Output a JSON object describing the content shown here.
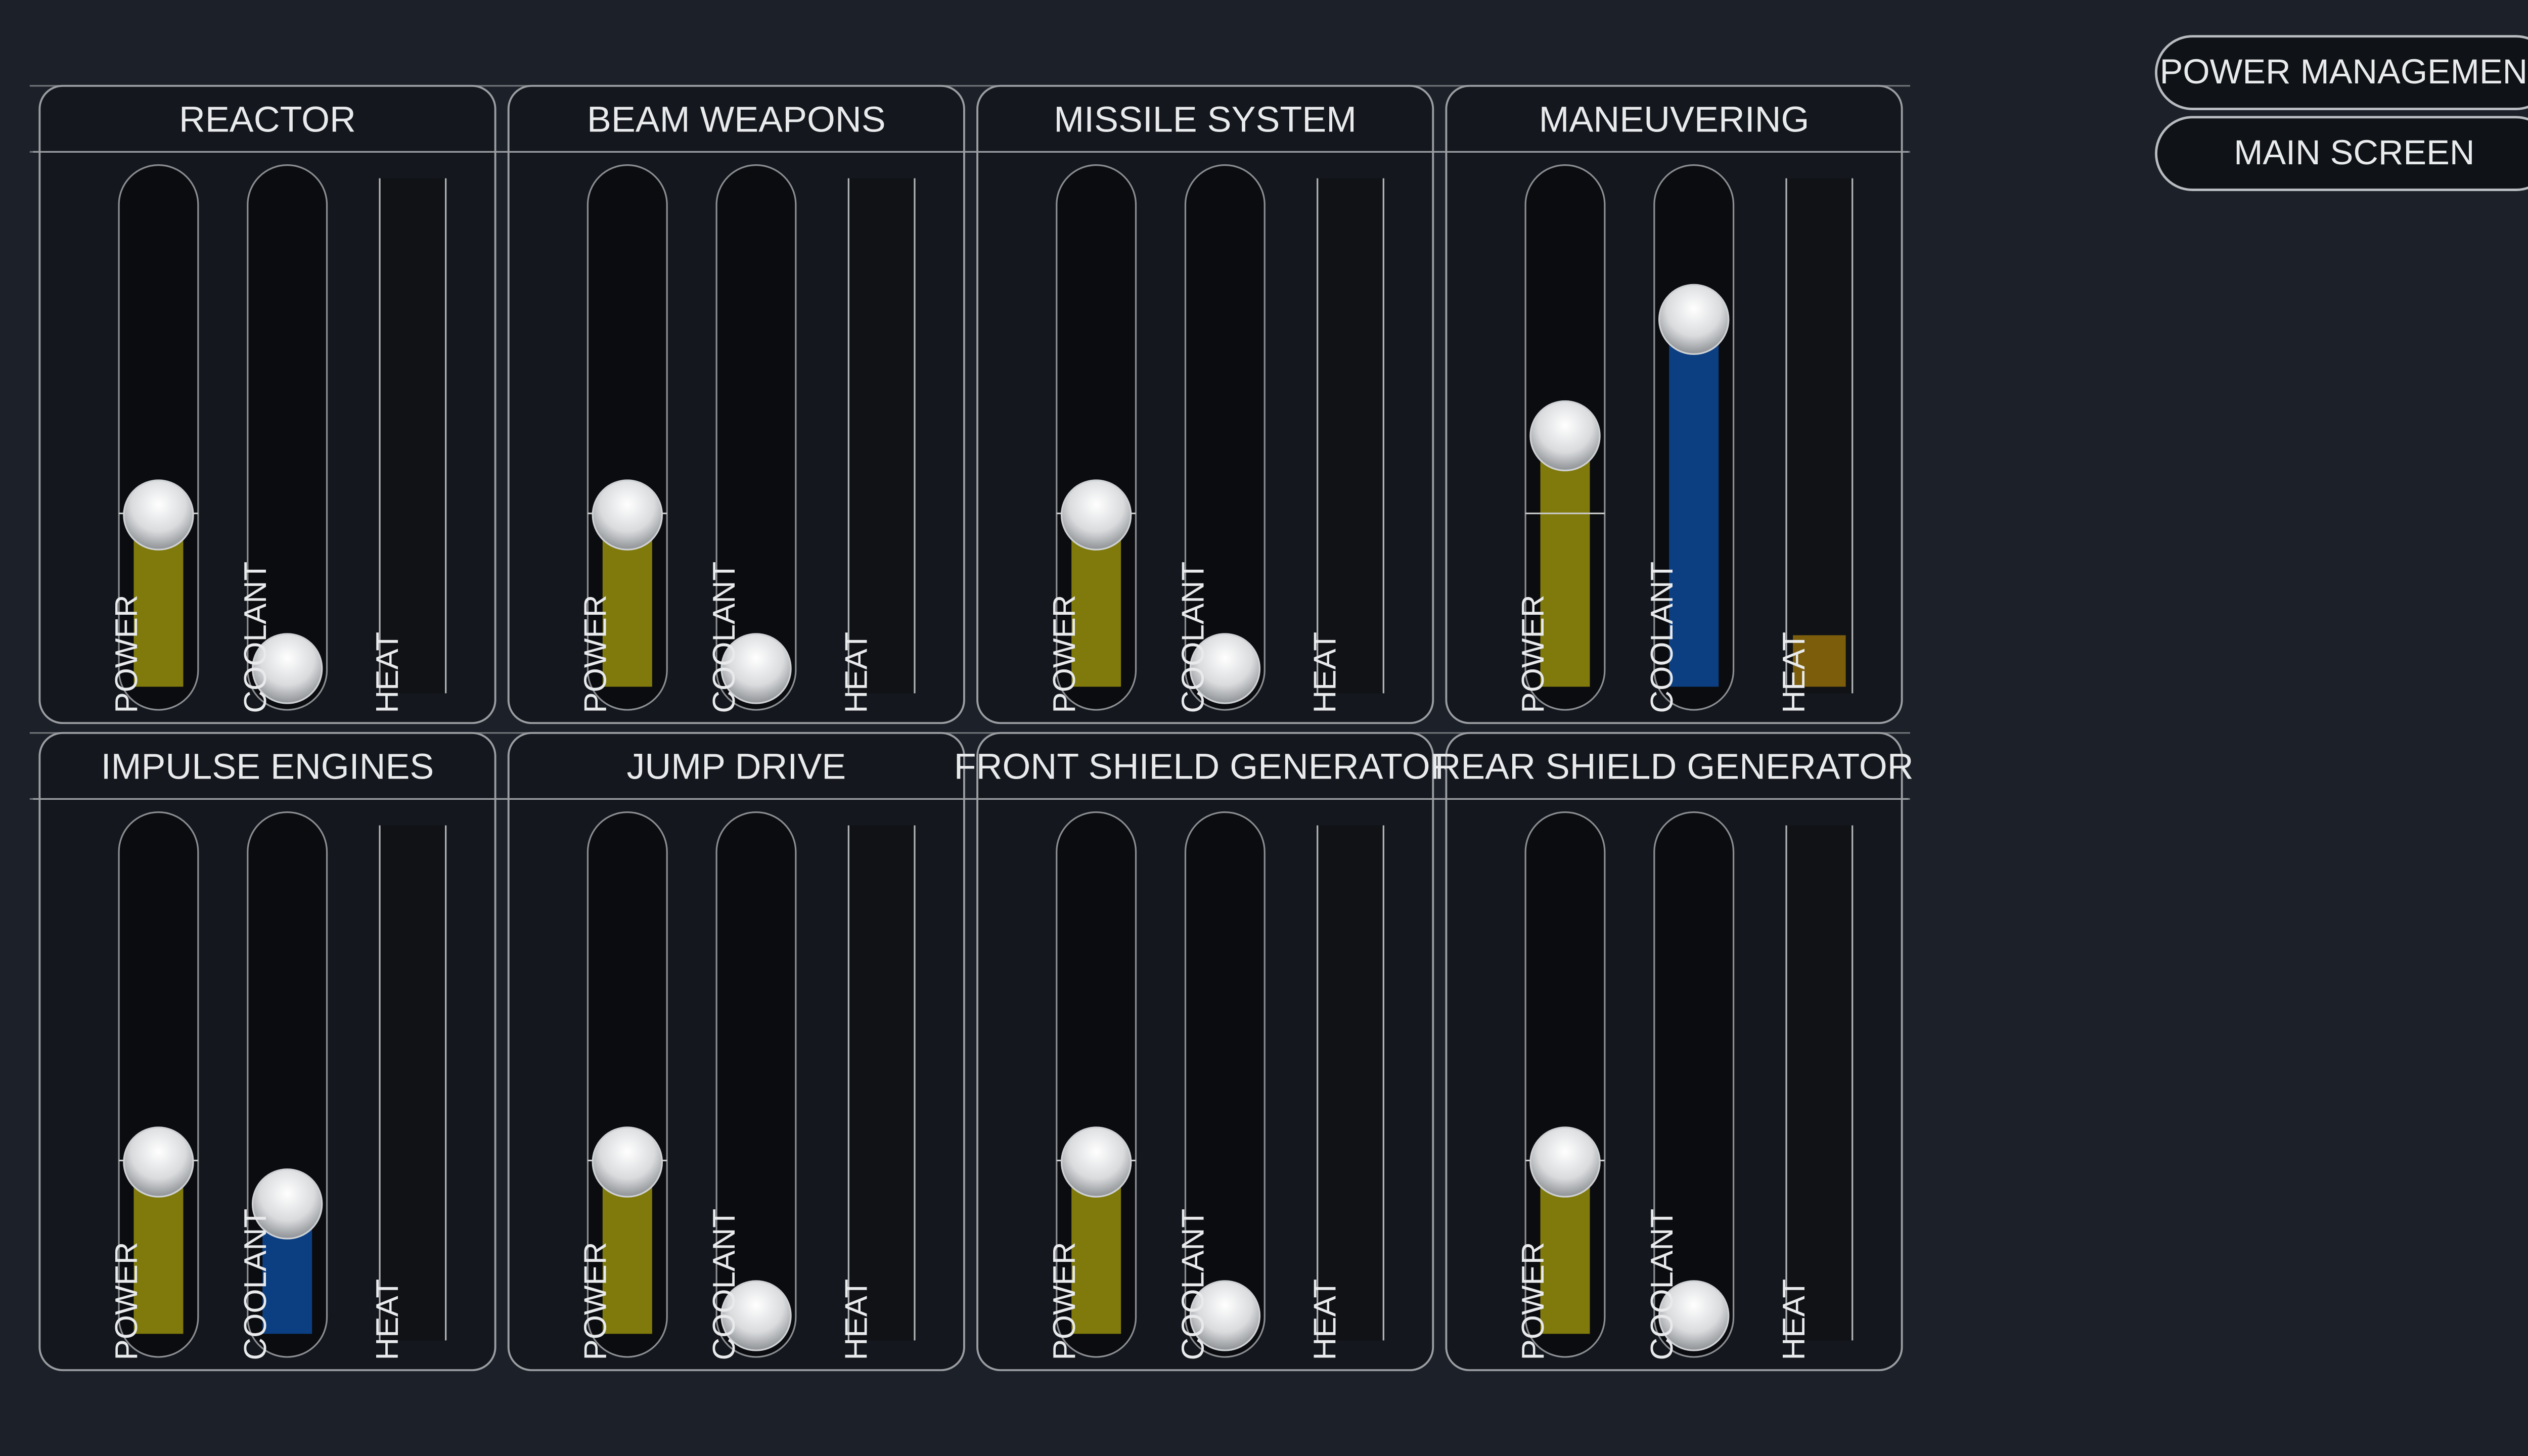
{
  "slider_range": [
    0,
    100
  ],
  "slider_labels": {
    "power": "POWER",
    "coolant": "COOLANT",
    "heat": "HEAT"
  },
  "buttons": [
    "POWER MANAGEMENT",
    "MAIN SCREEN"
  ],
  "systems": [
    {
      "name": "REACTOR",
      "power": 33,
      "coolant": 0,
      "heat": 0
    },
    {
      "name": "BEAM WEAPONS",
      "power": 33,
      "coolant": 0,
      "heat": 0
    },
    {
      "name": "MISSILE SYSTEM",
      "power": 33,
      "coolant": 0,
      "heat": 0
    },
    {
      "name": "MANEUVERING",
      "power": 50,
      "coolant": 75,
      "heat": 10
    },
    {
      "name": "IMPULSE ENGINES",
      "power": 33,
      "coolant": 24,
      "heat": 0
    },
    {
      "name": "JUMP DRIVE",
      "power": 33,
      "coolant": 0,
      "heat": 0
    },
    {
      "name": "FRONT SHIELD GENERATOR",
      "power": 33,
      "coolant": 0,
      "heat": 0
    },
    {
      "name": "REAR SHIELD GENERATOR",
      "power": 33,
      "coolant": 0,
      "heat": 0
    }
  ]
}
